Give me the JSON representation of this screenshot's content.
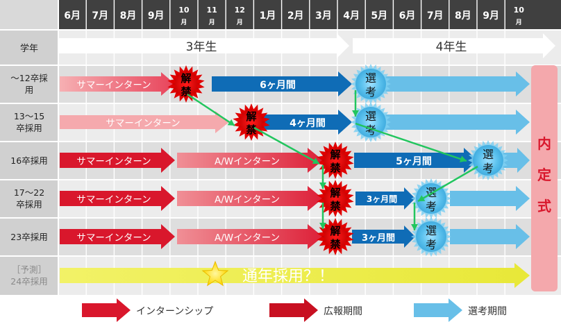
{
  "header": {
    "months": [
      {
        "label": "6月"
      },
      {
        "label": "7月"
      },
      {
        "label": "8月"
      },
      {
        "label": "9月"
      },
      {
        "top": "10",
        "bottom": "月"
      },
      {
        "top": "11",
        "bottom": "月"
      },
      {
        "top": "12",
        "bottom": "月"
      },
      {
        "label": "1月"
      },
      {
        "label": "2月"
      },
      {
        "label": "3月"
      },
      {
        "label": "4月"
      },
      {
        "label": "5月"
      },
      {
        "label": "6月"
      },
      {
        "label": "7月"
      },
      {
        "label": "8月"
      },
      {
        "label": "9月"
      },
      {
        "top": "10",
        "bottom": "月"
      }
    ]
  },
  "grade_row": {
    "label": "学年",
    "third": "3年生",
    "fourth": "4年生"
  },
  "rows": [
    {
      "lines": [
        "〜12卒採",
        "用"
      ],
      "summer": "サマーインターン",
      "kaikin": [
        "解",
        "禁"
      ],
      "period": "6ヶ月間",
      "senko": [
        "選",
        "考"
      ]
    },
    {
      "lines": [
        "13〜15",
        "卒採用"
      ],
      "summer": "サマーインターン",
      "kaikin": [
        "解",
        "禁"
      ],
      "period": "4ヶ月間",
      "senko": [
        "選",
        "考"
      ]
    },
    {
      "lines": [
        "16卒採用"
      ],
      "summer": "サマーインターン",
      "aw": "A/Wインターン",
      "kaikin": [
        "解",
        "禁"
      ],
      "period": "5ヶ月間",
      "senko": [
        "選",
        "考"
      ]
    },
    {
      "lines": [
        "17〜22",
        "卒採用"
      ],
      "summer": "サマーインターン",
      "aw": "A/Wインターン",
      "kaikin": [
        "解",
        "禁"
      ],
      "period": "3ヶ月間",
      "senko": [
        "選",
        "考"
      ]
    },
    {
      "lines": [
        "23卒採用"
      ],
      "summer": "サマーインターン",
      "aw": "A/Wインターン",
      "kaikin": [
        "解",
        "禁"
      ],
      "period": "3ヶ月間",
      "senko": [
        "選",
        "考"
      ]
    },
    {
      "lines": [
        "［予測］",
        "24卒採用"
      ],
      "yearround": "通年採用？！"
    }
  ],
  "naitei": [
    "内",
    "定",
    "式"
  ],
  "legend": {
    "internship": "インターンシップ",
    "pr": "広報期間",
    "selection": "選考期間"
  },
  "colors": {
    "red": "#d9172c",
    "blue": "#0f6cb6",
    "lightblue": "#68bfe8",
    "green": "#22c55e",
    "yellow": "#f0f060",
    "pink": "#f4a8ac"
  }
}
